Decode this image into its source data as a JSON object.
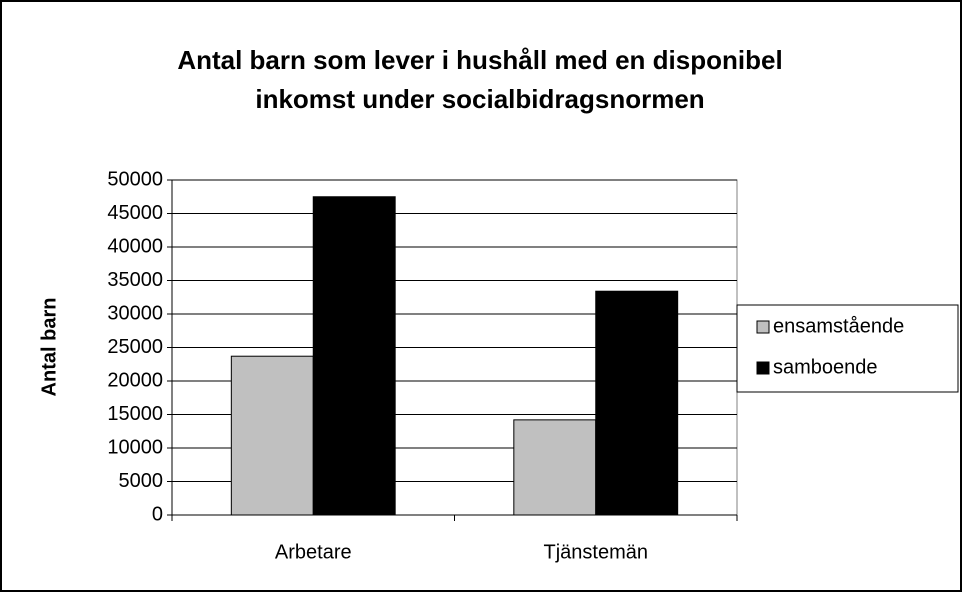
{
  "chart_data": {
    "type": "bar",
    "title": [
      "Antal barn som lever i hushåll med en disponibel",
      "inkomst under socialbidragsnormen"
    ],
    "y_label": "Antal barn",
    "categories": [
      "Arbetare",
      "Tjänstemän"
    ],
    "series": [
      {
        "name": "ensamstående",
        "color": "#c0c0c0",
        "values": [
          23700,
          14200
        ]
      },
      {
        "name": "samboende",
        "color": "#000000",
        "values": [
          47500,
          33400
        ]
      }
    ],
    "ylim": [
      0,
      50000
    ],
    "yticks": [
      0,
      5000,
      10000,
      15000,
      20000,
      25000,
      30000,
      35000,
      40000,
      45000,
      50000
    ],
    "grid": true,
    "legend": "right"
  }
}
